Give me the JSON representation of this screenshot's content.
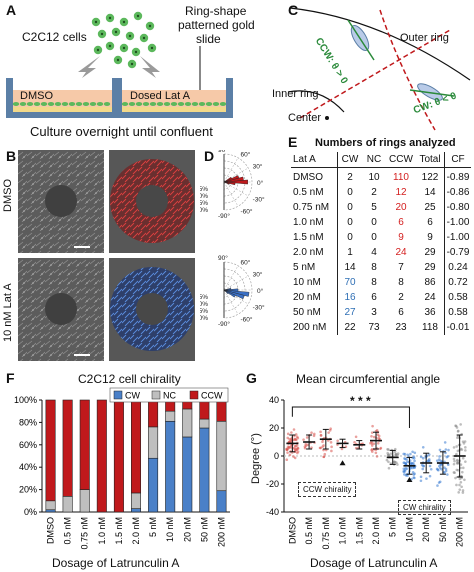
{
  "panel_labels": {
    "a": "A",
    "b": "B",
    "c": "C",
    "d": "D",
    "e": "E",
    "f": "F",
    "g": "G"
  },
  "panel_a": {
    "cells_label": "C2C12 cells",
    "slide_label_line1": "Ring-shape",
    "slide_label_line2": "patterned gold",
    "slide_label_line3": "slide",
    "well_left": "DMSO",
    "well_right": "Dosed Lat A",
    "caption": "Culture overnight until confluent",
    "colors": {
      "cell": "#5cb85c",
      "medium": "#f6c9a8",
      "well": "#5b7fa6"
    }
  },
  "panel_b": {
    "row1_label": "DMSO",
    "row2_label": "10 nM Lat A",
    "colors": {
      "dmso_overlay": "#c0392b",
      "latA_overlay": "#3a6fc4"
    }
  },
  "panel_c": {
    "outer_ring": "Outer ring",
    "inner_ring": "Inner ring",
    "center": "Center",
    "ccw": "CCW: θ > 0",
    "cw": "CW: θ < 0"
  },
  "panel_d": {
    "angle_labels_top": [
      "90°",
      "60°",
      "30°",
      "0°",
      "-30°",
      "-60°",
      "-90°"
    ],
    "radius_labels": [
      "5%",
      "10%",
      "15%",
      "20%"
    ],
    "angle_labels_bottom": [
      "90°",
      "60°",
      "30°",
      "0°",
      "-30°",
      "-60°",
      "-90°"
    ]
  },
  "panel_e": {
    "title": "Numbers of rings analyzed",
    "headers": [
      "Lat A",
      "CW",
      "NC",
      "CCW",
      "Total",
      "CF"
    ],
    "rows": [
      [
        "DMSO",
        "2",
        "10",
        "110",
        "122",
        "-0.89"
      ],
      [
        "0.5 nM",
        "0",
        "2",
        "12",
        "14",
        "-0.86"
      ],
      [
        "0.75 nM",
        "0",
        "5",
        "20",
        "25",
        "-0.80"
      ],
      [
        "1.0 nM",
        "0",
        "0",
        "6",
        "6",
        "-1.00"
      ],
      [
        "1.5 nM",
        "0",
        "0",
        "9",
        "9",
        "-1.00"
      ],
      [
        "2.0 nM",
        "1",
        "4",
        "24",
        "29",
        "-0.79"
      ],
      [
        "5 nM",
        "14",
        "8",
        "7",
        "29",
        "0.24"
      ],
      [
        "10 nM",
        "70",
        "8",
        "8",
        "86",
        "0.72"
      ],
      [
        "20 nM",
        "16",
        "6",
        "2",
        "24",
        "0.58"
      ],
      [
        "50 nM",
        "27",
        "3",
        "6",
        "36",
        "0.58"
      ],
      [
        "200 nM",
        "22",
        "73",
        "23",
        "118",
        "-0.01"
      ]
    ]
  },
  "panel_f": {
    "title": "C2C12 cell chirality",
    "legend": [
      "CW",
      "NC",
      "CCW"
    ],
    "xlabel": "Dosage of Latrunculin A",
    "yticks": [
      "0%",
      "20%",
      "40%",
      "60%",
      "80%",
      "100%"
    ]
  },
  "panel_g": {
    "title": "Mean circumferential angle",
    "ylabel": "Degree (°)",
    "xlabel": "Dosage of Latrunculin A",
    "yticks": [
      "-40",
      "-20",
      "0",
      "20",
      "40"
    ],
    "significance": "* * *",
    "box_ccw": "CCW chirality",
    "box_cw": "CW chirality"
  },
  "chart_data": [
    {
      "type": "bar",
      "title": "C2C12 cell chirality",
      "xlabel": "Dosage of Latrunculin A",
      "ylabel": "",
      "ylim": [
        0,
        100
      ],
      "stacked": true,
      "categories": [
        "DMSO",
        "0.5 nM",
        "0.75 nM",
        "1.0 nM",
        "1.5 nM",
        "2.0 nM",
        "5 nM",
        "10 nM",
        "20 nM",
        "50 nM",
        "200 nM"
      ],
      "series": [
        {
          "name": "CW",
          "color": "#4a80c8",
          "values": [
            2,
            0,
            0,
            0,
            0,
            3,
            48,
            81,
            67,
            75,
            19
          ]
        },
        {
          "name": "NC",
          "color": "#bfbfbf",
          "values": [
            8,
            14,
            20,
            0,
            0,
            14,
            28,
            9,
            25,
            8,
            62
          ]
        },
        {
          "name": "CCW",
          "color": "#c0191c",
          "values": [
            90,
            86,
            80,
            100,
            100,
            83,
            24,
            9,
            8,
            17,
            19
          ]
        }
      ]
    },
    {
      "type": "scatter",
      "title": "Mean circumferential angle",
      "xlabel": "Dosage of Latrunculin A",
      "ylabel": "Degree (°)",
      "ylim": [
        -40,
        40
      ],
      "categories": [
        "DMSO",
        "0.5 nM",
        "0.75 nM",
        "1.0 nM",
        "1.5 nM",
        "2.0 nM",
        "5 nM",
        "10 nM",
        "20 nM",
        "50 nM",
        "200 nM"
      ],
      "means": [
        9,
        10,
        12,
        9,
        8,
        11,
        -1,
        -7,
        -5,
        -5,
        0
      ],
      "sd": [
        6,
        5,
        7,
        3,
        3,
        6,
        5,
        6,
        7,
        8,
        15
      ],
      "colors": [
        "#d9534f",
        "#d9534f",
        "#d9534f",
        "#d9534f",
        "#d9534f",
        "#d9534f",
        "#888888",
        "#3a7cd1",
        "#3a7cd1",
        "#3a7cd1",
        "#888888"
      ]
    }
  ]
}
